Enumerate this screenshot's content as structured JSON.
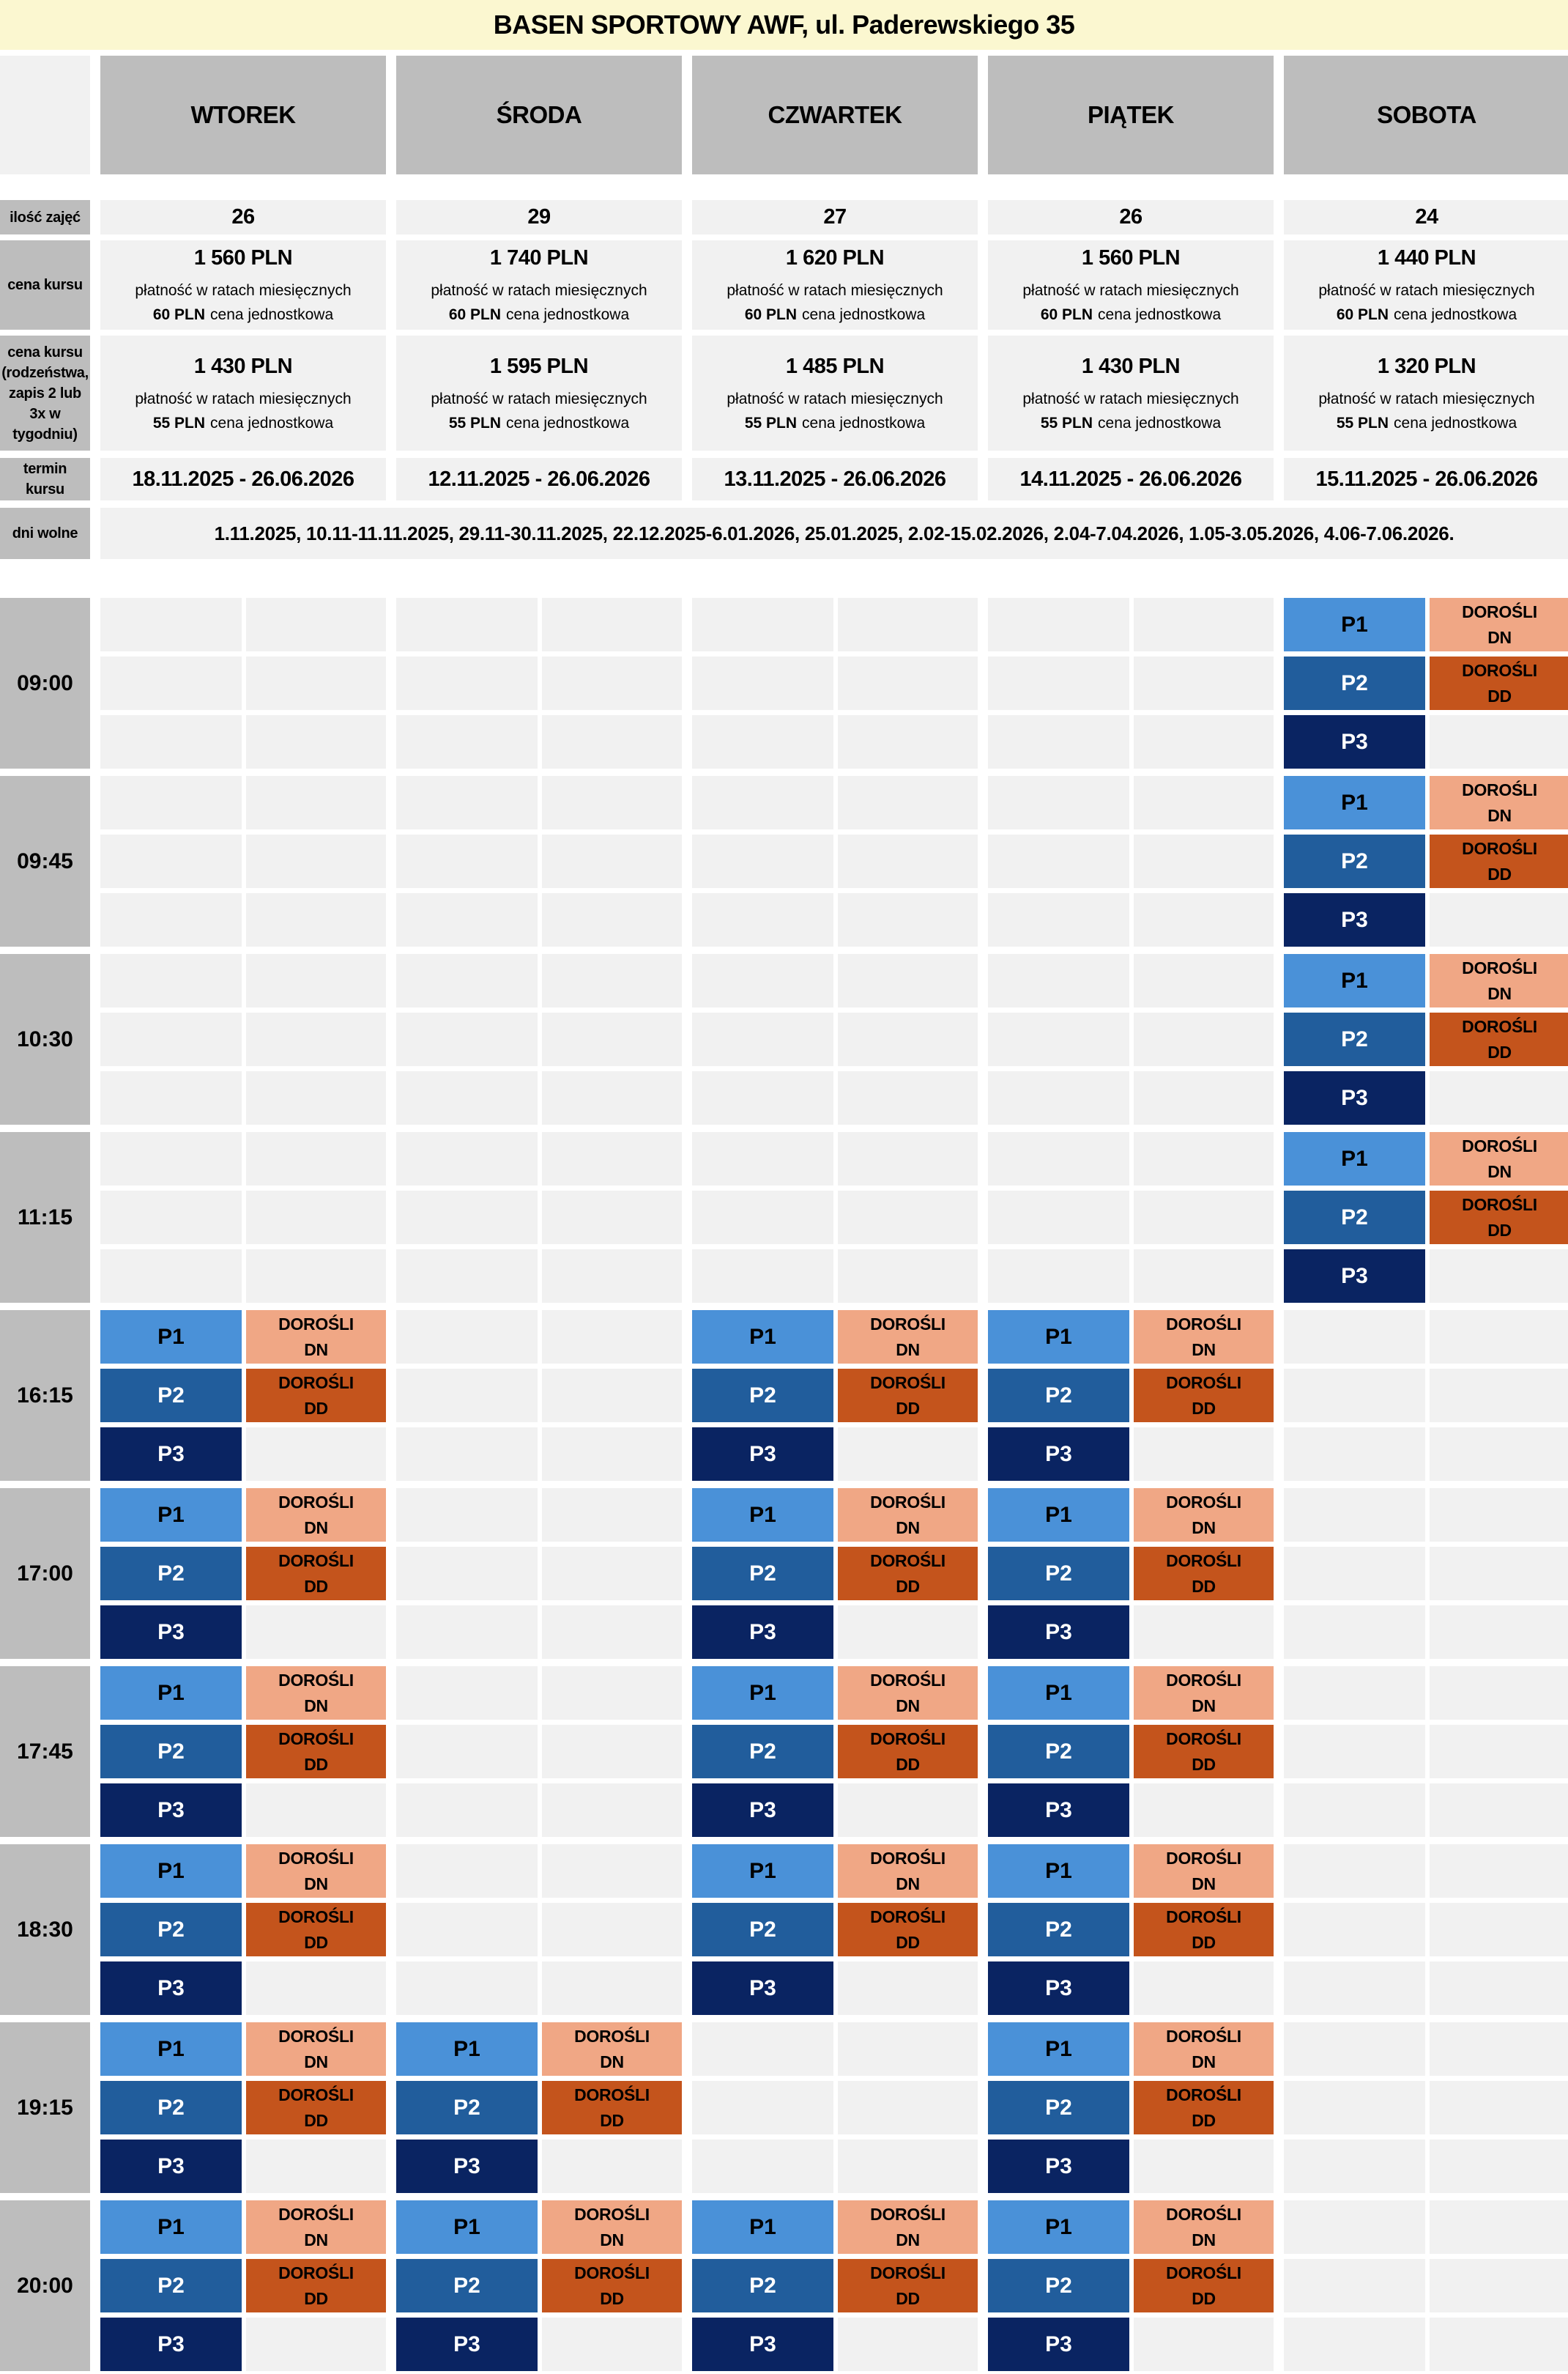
{
  "title": "BASEN SPORTOWY AWF, ul. Paderewskiego 35",
  "days": [
    "WTOREK",
    "ŚRODA",
    "CZWARTEK",
    "PIĄTEK",
    "SOBOTA"
  ],
  "rows": {
    "classes_count": {
      "label": "ilość zajęć",
      "values": [
        "26",
        "29",
        "27",
        "26",
        "24"
      ]
    },
    "price": {
      "label": "cena kursu",
      "prices": [
        "1 560 PLN",
        "1 740 PLN",
        "1 620 PLN",
        "1 560 PLN",
        "1 440 PLN"
      ],
      "note": "płatność w ratach miesięcznych",
      "unit_price": "60 PLN",
      "unit_note": "cena jednostkowa"
    },
    "price_siblings": {
      "label": "cena kursu (rodzeństwa, zapis 2 lub 3x w tygodniu)",
      "prices": [
        "1 430 PLN",
        "1 595 PLN",
        "1 485 PLN",
        "1 430 PLN",
        "1 320 PLN"
      ],
      "note": "płatność w ratach miesięcznych",
      "unit_price": "55 PLN",
      "unit_note": "cena jednostkowa"
    },
    "term": {
      "label": "termin kursu",
      "values": [
        "18.11.2025 - 26.06.2026",
        "12.11.2025 - 26.06.2026",
        "13.11.2025 - 26.06.2026",
        "14.11.2025 - 26.06.2026",
        "15.11.2025 - 26.06.2026"
      ]
    },
    "days_off": {
      "label": "dni wolne",
      "value": "1.11.2025, 10.11-11.11.2025, 29.11-30.11.2025, 22.12.2025-6.01.2026, 25.01.2025, 2.02-15.02.2026, 2.04-7.04.2026, 1.05-3.05.2026, 4.06-7.06.2026."
    }
  },
  "schedule": {
    "times": [
      "09:00",
      "09:45",
      "10:30",
      "11:15",
      "16:15",
      "17:00",
      "17:45",
      "18:30",
      "19:15",
      "20:00"
    ],
    "active_day_indexes": [
      [
        4
      ],
      [
        4
      ],
      [
        4
      ],
      [
        4
      ],
      [
        0,
        2,
        3
      ],
      [
        0,
        2,
        3
      ],
      [
        0,
        2,
        3
      ],
      [
        0,
        2,
        3
      ],
      [
        0,
        1,
        3
      ],
      [
        0,
        1,
        2,
        3
      ]
    ],
    "group_labels": {
      "p1": "P1",
      "p2": "P2",
      "p3": "P3",
      "adults_word": "DOROŚLI",
      "adults_dn": "DN",
      "adults_dd": "DD"
    }
  },
  "colors": {
    "title_bg": "#fbf7d0",
    "header_gray": "#bdbdbd",
    "cell_gray": "#f1f1f1",
    "p1_blue": "#4a91d8",
    "p2_blue": "#215d9c",
    "p3_navy": "#0a2462",
    "adults_dn_salmon": "#f0a785",
    "adults_dd_orange": "#c4541c"
  }
}
